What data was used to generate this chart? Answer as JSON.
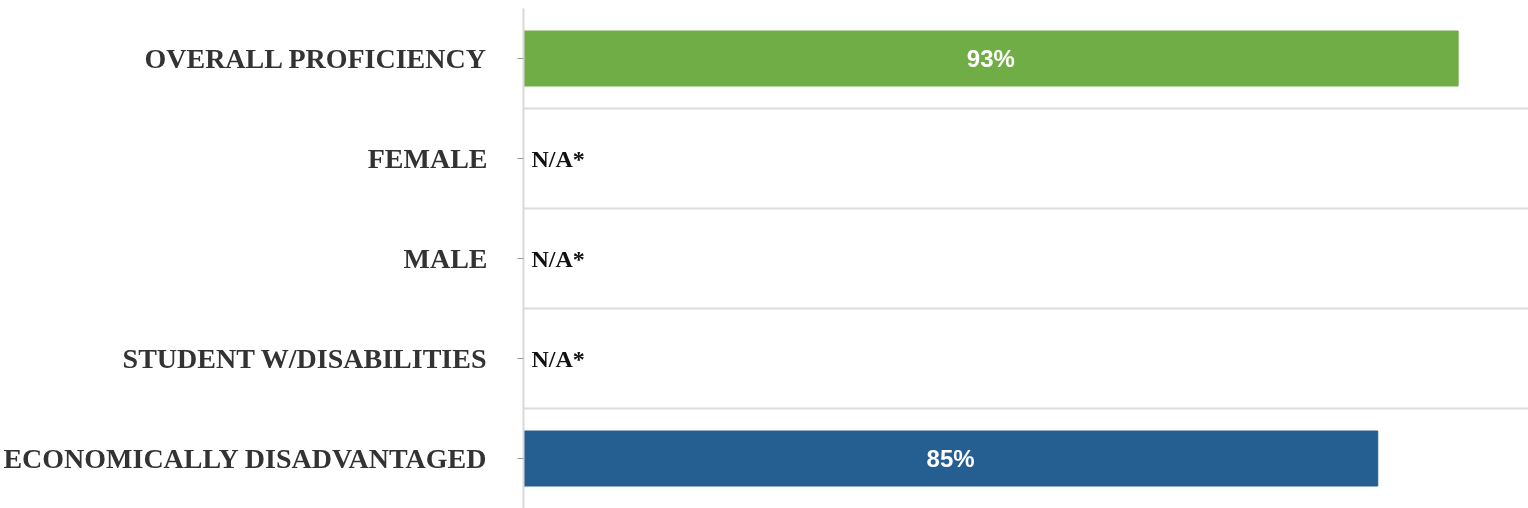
{
  "chart_data": {
    "type": "bar",
    "orientation": "horizontal",
    "categories": [
      "OVERALL PROFICIENCY",
      "FEMALE",
      "MALE",
      "STUDENT W/DISABILITIES",
      "ECONOMICALLY DISADVANTAGED"
    ],
    "values": [
      93,
      null,
      null,
      null,
      85
    ],
    "colors": [
      "#70ad47",
      null,
      null,
      null,
      "#255e91"
    ],
    "value_labels": [
      "93%",
      "N/A*",
      "N/A*",
      "N/A*",
      "85%"
    ],
    "xlim": [
      0,
      100
    ],
    "grid": "y",
    "tick_labels": "y"
  }
}
